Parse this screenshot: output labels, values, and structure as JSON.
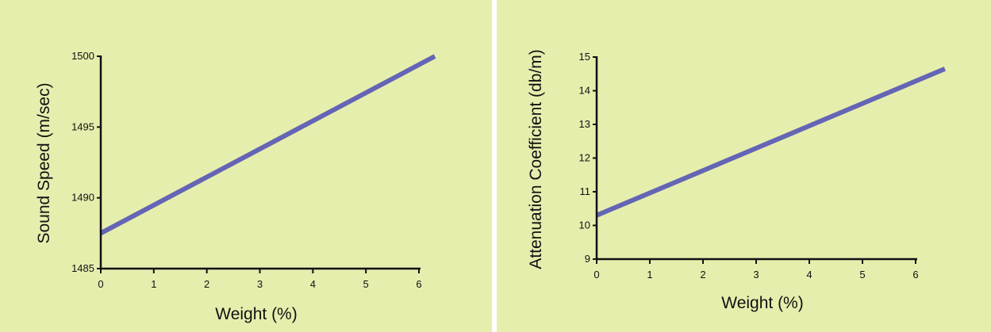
{
  "colors": {
    "panel_bg": "#e6eeae",
    "line": "#6465b5",
    "axis": "#111111"
  },
  "chart_data": [
    {
      "type": "line",
      "title": "",
      "xlabel": "Weight (%)",
      "ylabel": "Sound Speed (m/sec)",
      "xlim": [
        0,
        6.3
      ],
      "ylim": [
        1485,
        1500
      ],
      "xticks": [
        0,
        1,
        2,
        3,
        4,
        5,
        6
      ],
      "yticks": [
        1485,
        1490,
        1495,
        1500
      ],
      "grid": false,
      "series": [
        {
          "x": [
            0,
            6.3
          ],
          "y": [
            1487.5,
            1500
          ]
        }
      ]
    },
    {
      "type": "line",
      "title": "",
      "xlabel": "Weight (%)",
      "ylabel": "Attenuation Coefficient (db/m)",
      "xlim": [
        0,
        6.55
      ],
      "ylim": [
        9,
        15
      ],
      "xticks": [
        0,
        1,
        2,
        3,
        4,
        5,
        6
      ],
      "yticks": [
        9,
        10,
        11,
        12,
        13,
        14,
        15
      ],
      "grid": false,
      "series": [
        {
          "x": [
            0,
            6.55
          ],
          "y": [
            10.3,
            14.65
          ]
        }
      ]
    }
  ]
}
